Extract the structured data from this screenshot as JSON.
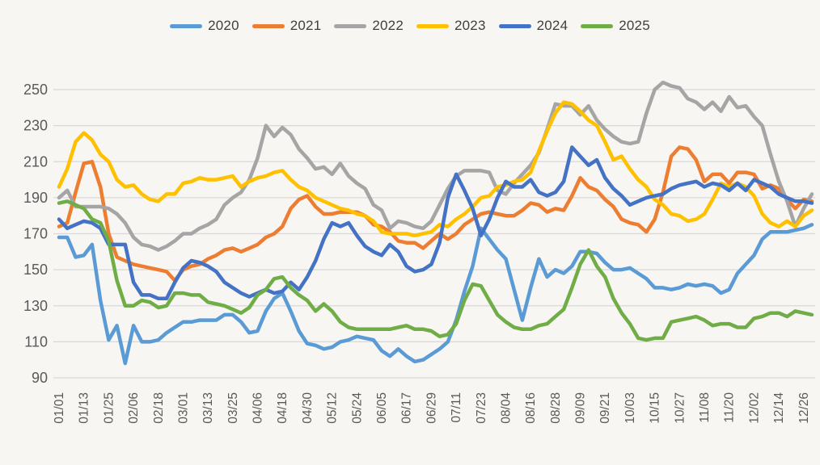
{
  "chart_data": {
    "type": "line",
    "title": "",
    "xlabel": "",
    "ylabel": "",
    "ylim": [
      90,
      250
    ],
    "ytick_step": 20,
    "ytick_labels": [
      "90",
      "110",
      "130",
      "150",
      "170",
      "190",
      "210",
      "230",
      "250"
    ],
    "grid": true,
    "legend_position": "top",
    "x_label_every_nth_point": 3,
    "x_labels": [
      "01/01",
      "01/13",
      "01/25",
      "02/06",
      "02/18",
      "03/01",
      "03/13",
      "03/25",
      "04/06",
      "04/18",
      "04/30",
      "05/12",
      "05/24",
      "06/05",
      "06/17",
      "06/29",
      "07/11",
      "07/23",
      "08/04",
      "08/16",
      "08/28",
      "09/09",
      "09/21",
      "10/03",
      "10/15",
      "10/27",
      "11/08",
      "11/20",
      "12/02",
      "12/14",
      "12/26"
    ],
    "series": [
      {
        "name": "2020",
        "color": "#5B9BD5",
        "values": [
          168,
          168,
          157,
          158,
          164,
          133,
          111,
          119,
          98,
          119,
          110,
          110,
          111,
          115,
          118,
          121,
          121,
          122,
          122,
          122,
          125,
          125,
          121,
          115,
          116,
          127,
          134,
          137,
          127,
          116,
          109,
          108,
          106,
          107,
          110,
          111,
          113,
          112,
          111,
          105,
          102,
          106,
          102,
          99,
          100,
          103,
          106,
          110,
          122,
          138,
          152,
          173,
          167,
          161,
          156,
          139,
          122,
          140,
          156,
          146,
          150,
          148,
          152,
          160,
          160,
          159,
          154,
          150,
          150,
          151,
          148,
          145,
          140,
          140,
          139,
          140,
          142,
          141,
          142,
          141,
          137,
          139,
          148,
          153,
          158,
          167,
          171,
          171,
          171,
          172,
          173,
          175
        ]
      },
      {
        "name": "2021",
        "color": "#ED7D31",
        "values": [
          174,
          176,
          193,
          209,
          210,
          196,
          170,
          157,
          155,
          153,
          152,
          151,
          150,
          149,
          144,
          150,
          152,
          153,
          156,
          158,
          161,
          162,
          160,
          162,
          164,
          168,
          170,
          174,
          184,
          189,
          191,
          185,
          181,
          181,
          182,
          182,
          182,
          180,
          175,
          174,
          171,
          166,
          165,
          165,
          162,
          166,
          170,
          167,
          170,
          175,
          178,
          181,
          182,
          181,
          180,
          180,
          183,
          187,
          186,
          182,
          184,
          183,
          191,
          201,
          196,
          194,
          189,
          185,
          178,
          176,
          175,
          171,
          178,
          193,
          213,
          218,
          217,
          211,
          199,
          203,
          203,
          198,
          204,
          204,
          203,
          195,
          197,
          195,
          189,
          184,
          189,
          188
        ]
      },
      {
        "name": "2022",
        "color": "#A5A5A5",
        "values": [
          190,
          194,
          185,
          185,
          185,
          185,
          184,
          181,
          176,
          168,
          164,
          163,
          161,
          163,
          166,
          170,
          170,
          173,
          175,
          178,
          186,
          190,
          193,
          200,
          212,
          230,
          224,
          229,
          225,
          217,
          212,
          206,
          207,
          203,
          209,
          202,
          198,
          195,
          186,
          183,
          173,
          177,
          176,
          174,
          173,
          177,
          186,
          195,
          202,
          205,
          205,
          205,
          204,
          194,
          192,
          198,
          203,
          208,
          215,
          228,
          242,
          241,
          241,
          236,
          241,
          233,
          228,
          224,
          221,
          220,
          221,
          237,
          250,
          254,
          252,
          251,
          245,
          243,
          239,
          243,
          238,
          246,
          240,
          241,
          235,
          230,
          214,
          199,
          188,
          174,
          184,
          192
        ]
      },
      {
        "name": "2023",
        "color": "#FFC000",
        "values": [
          196,
          206,
          221,
          226,
          222,
          214,
          210,
          200,
          196,
          197,
          192,
          189,
          188,
          192,
          192,
          198,
          199,
          201,
          200,
          200,
          201,
          202,
          196,
          199,
          201,
          202,
          204,
          205,
          200,
          196,
          194,
          190,
          188,
          186,
          184,
          183,
          181,
          180,
          177,
          171,
          170,
          170,
          170,
          169,
          170,
          171,
          175,
          174,
          178,
          181,
          185,
          190,
          191,
          196,
          197,
          199,
          200,
          204,
          216,
          227,
          237,
          243,
          242,
          238,
          233,
          230,
          221,
          211,
          213,
          206,
          200,
          196,
          189,
          186,
          181,
          180,
          177,
          178,
          181,
          189,
          198,
          196,
          198,
          196,
          191,
          181,
          176,
          174,
          177,
          174,
          180,
          183
        ]
      },
      {
        "name": "2024",
        "color": "#4472C4",
        "values": [
          178,
          173,
          175,
          177,
          176,
          173,
          164,
          164,
          164,
          143,
          136,
          136,
          134,
          134,
          143,
          151,
          155,
          154,
          152,
          149,
          143,
          140,
          137,
          135,
          137,
          139,
          137,
          138,
          143,
          139,
          146,
          155,
          167,
          176,
          174,
          176,
          169,
          163,
          160,
          158,
          164,
          160,
          152,
          149,
          150,
          153,
          165,
          190,
          203,
          194,
          184,
          169,
          178,
          190,
          199,
          196,
          196,
          200,
          193,
          191,
          193,
          199,
          218,
          213,
          208,
          211,
          201,
          195,
          191,
          186,
          188,
          190,
          191,
          192,
          195,
          197,
          198,
          199,
          196,
          198,
          197,
          194,
          198,
          194,
          200,
          198,
          196,
          192,
          190,
          188,
          188,
          187
        ]
      },
      {
        "name": "2025",
        "color": "#70AD47",
        "values": [
          187,
          188,
          186,
          184,
          178,
          176,
          166,
          144,
          130,
          130,
          133,
          132,
          129,
          130,
          137,
          137,
          136,
          136,
          132,
          131,
          130,
          128,
          126,
          129,
          136,
          139,
          145,
          146,
          140,
          136,
          133,
          127,
          131,
          127,
          121,
          118,
          117,
          117,
          117,
          117,
          117,
          118,
          119,
          117,
          117,
          116,
          113,
          114,
          120,
          133,
          142,
          141,
          133,
          125,
          121,
          118,
          117,
          117,
          119,
          120,
          124,
          128,
          140,
          153,
          161,
          152,
          146,
          134,
          126,
          120,
          112,
          111,
          112,
          112,
          121,
          122,
          123,
          124,
          122,
          119,
          120,
          120,
          118,
          118,
          123,
          124,
          126,
          126,
          124,
          127,
          126,
          125
        ]
      }
    ],
    "style": {
      "background": "#f7f6f3",
      "gridline_color": "#d8d8d8",
      "axis_text_color": "#595959",
      "line_width": 4.5
    }
  }
}
